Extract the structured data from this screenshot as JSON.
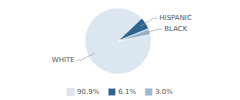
{
  "chart_data": {
    "type": "pie",
    "categories": [
      "WHITE",
      "HISPANIC",
      "BLACK"
    ],
    "values": [
      90.9,
      6.1,
      3.0
    ],
    "value_labels": [
      "90.9%",
      "6.1%",
      "3.0%"
    ],
    "colors": [
      "#dce6f0",
      "#2e6490",
      "#9ab8cc"
    ],
    "legend": "bottom"
  }
}
